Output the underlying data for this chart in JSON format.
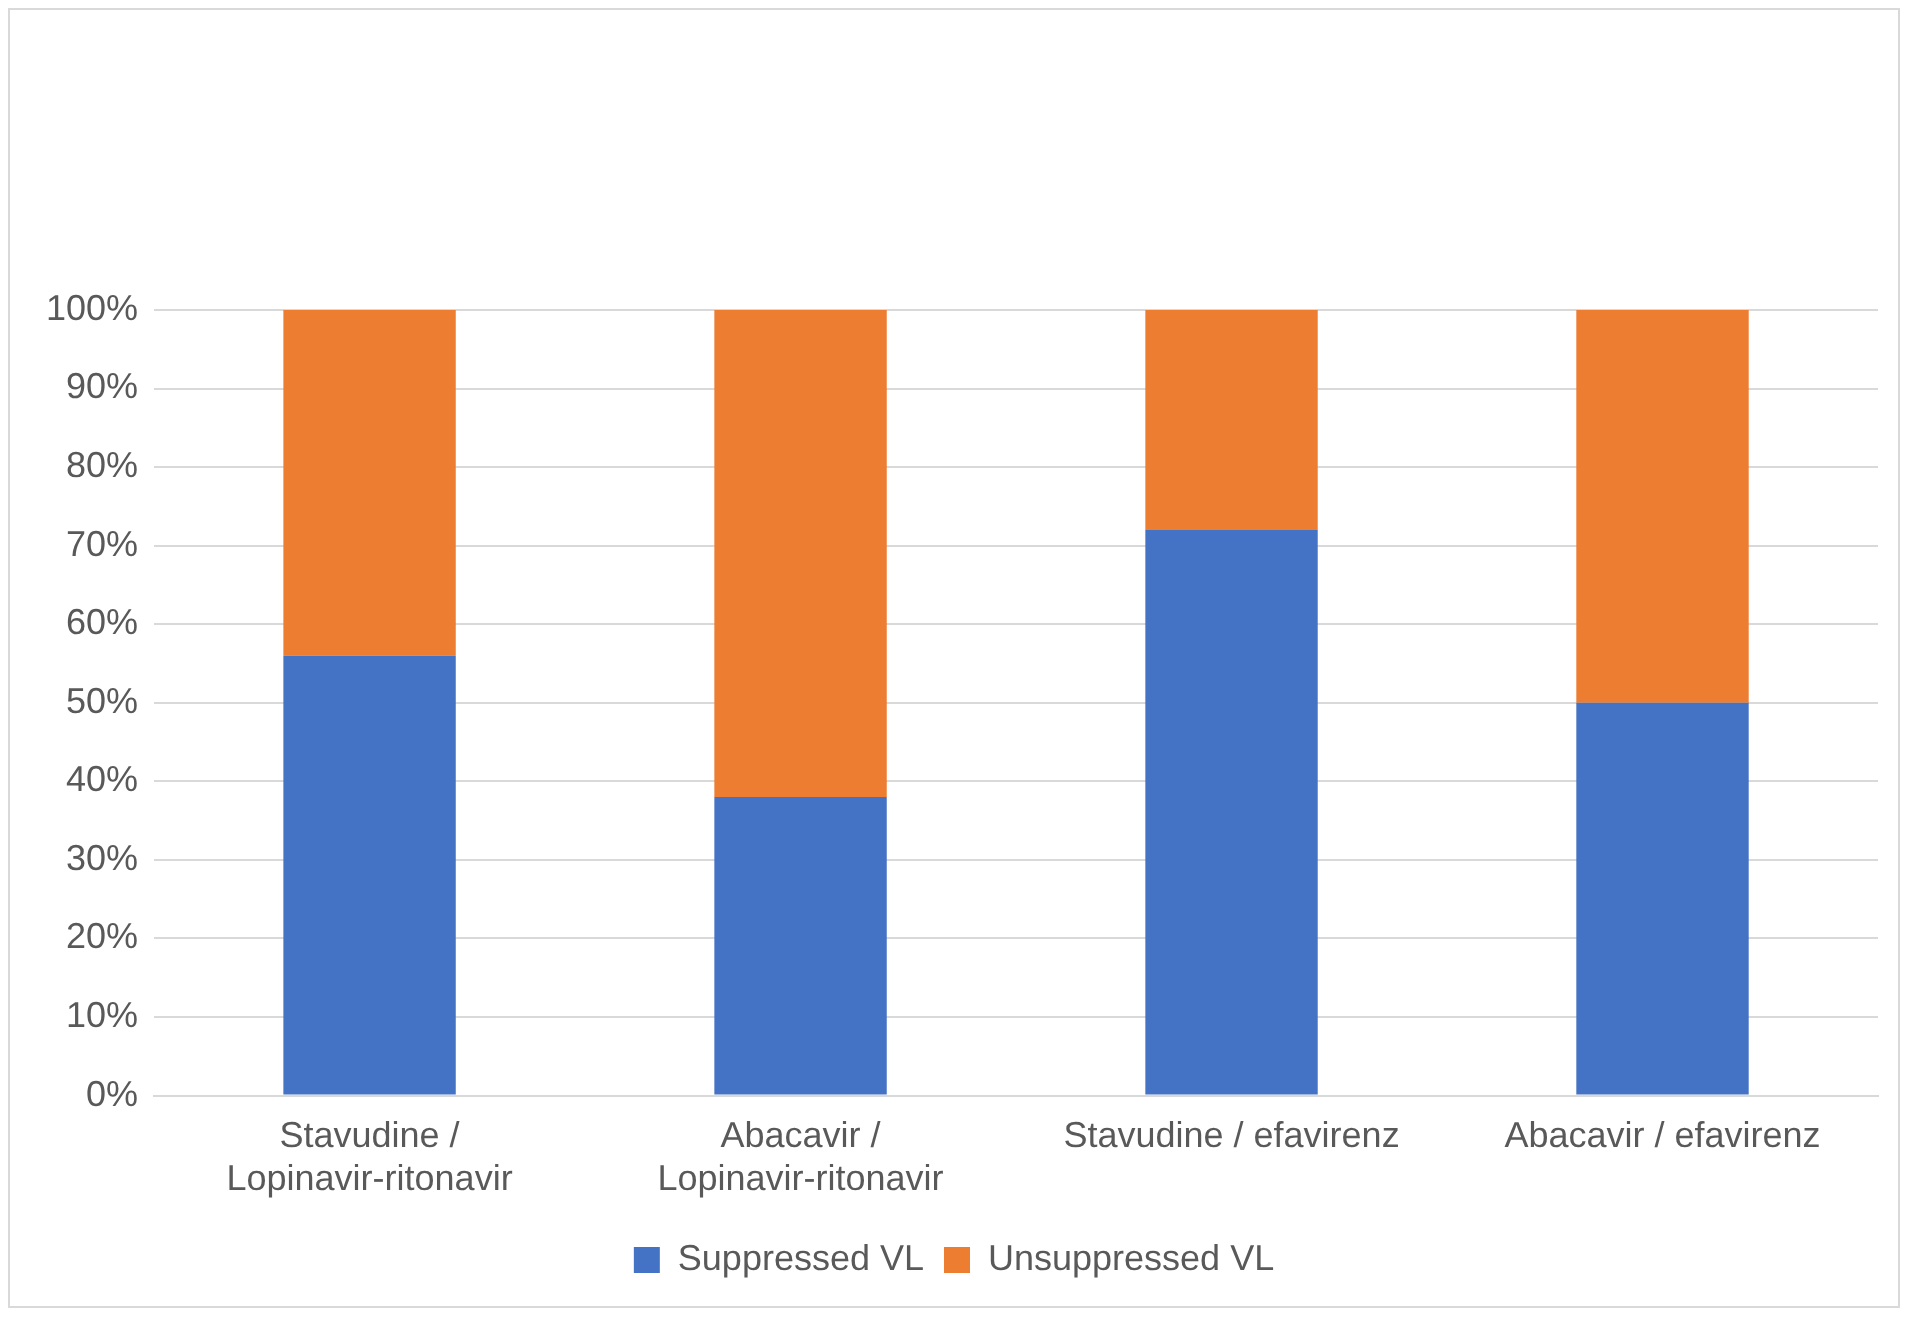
{
  "chart_data": {
    "type": "bar",
    "stacked": true,
    "categories": [
      "Stavudine / Lopinavir-ritonavir",
      "Abacavir / Lopinavir-ritonavir",
      "Stavudine / efavirenz",
      "Abacavir / efavirenz"
    ],
    "series": [
      {
        "name": "Suppressed VL",
        "color": "#4472c4",
        "values": [
          56,
          38,
          72,
          50
        ]
      },
      {
        "name": "Unsuppressed VL",
        "color": "#ed7d31",
        "values": [
          44,
          62,
          28,
          50
        ]
      }
    ],
    "ylim": [
      0,
      100
    ],
    "yticks": [
      {
        "value": 0,
        "label": "0%"
      },
      {
        "value": 10,
        "label": "10%"
      },
      {
        "value": 20,
        "label": "20%"
      },
      {
        "value": 30,
        "label": "30%"
      },
      {
        "value": 40,
        "label": "40%"
      },
      {
        "value": 50,
        "label": "50%"
      },
      {
        "value": 60,
        "label": "60%"
      },
      {
        "value": 70,
        "label": "70%"
      },
      {
        "value": 80,
        "label": "80%"
      },
      {
        "value": 90,
        "label": "90%"
      },
      {
        "value": 100,
        "label": "100%"
      }
    ],
    "grid": "y",
    "legend": "bottom"
  }
}
